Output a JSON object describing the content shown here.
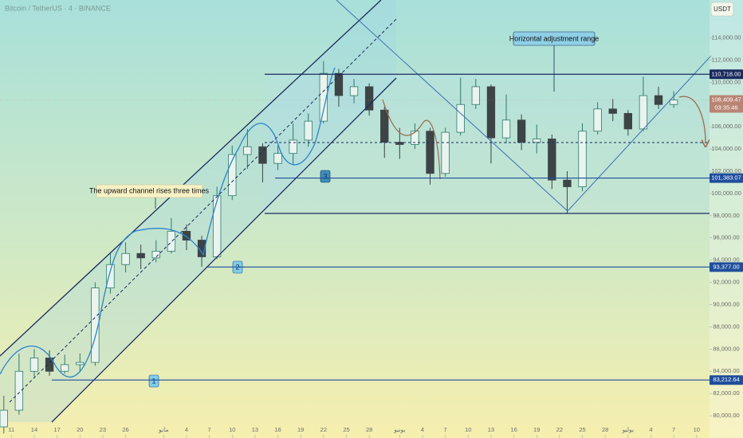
{
  "chart_data": {
    "type": "candlestick",
    "title": "Bitcoin / TetherUS · 4 · BINANCE",
    "currency": "USDT",
    "countdown": "03:35:46",
    "range_label": "Horizontal adjustment range",
    "channel_label": "The upward channel rises three times",
    "markers": [
      "1",
      "2",
      "3"
    ],
    "up_color": "#2e7a6c",
    "down_color": "#3d4446",
    "x": [
      0,
      2,
      4,
      6,
      8,
      10,
      12,
      14,
      16,
      18,
      20,
      22,
      24,
      26,
      28,
      30,
      32,
      34,
      36,
      38,
      40,
      42,
      44,
      46,
      48,
      50,
      52,
      54,
      56,
      58,
      60,
      62,
      64,
      66,
      68,
      70,
      72,
      74,
      76,
      78,
      80,
      82,
      84,
      86,
      88
    ],
    "open": [
      79000,
      80500,
      84000,
      85200,
      84000,
      84600,
      84800,
      91500,
      93600,
      94600,
      94200,
      94800,
      96600,
      95800,
      94300,
      99800,
      103500,
      104200,
      102700,
      103600,
      104800,
      106500,
      110800,
      108800,
      109600,
      107500,
      104600,
      104400,
      105600,
      101800,
      105500,
      108000,
      109600,
      105000,
      106600,
      104600,
      104900,
      101200,
      100600,
      105600,
      107600,
      107200,
      105800,
      108800,
      108000
    ],
    "high": [
      81800,
      85600,
      86000,
      85900,
      85500,
      85600,
      92000,
      94600,
      95600,
      95400,
      95800,
      97800,
      97200,
      96200,
      100600,
      104300,
      105800,
      104500,
      104300,
      106300,
      107200,
      111900,
      111200,
      110300,
      109900,
      107800,
      105900,
      106300,
      105900,
      105900,
      110400,
      110300,
      109800,
      108900,
      107100,
      106200,
      105300,
      102000,
      106300,
      108200,
      108500,
      107500,
      110500,
      109600,
      109200
    ],
    "low": [
      78400,
      80100,
      83500,
      83600,
      83800,
      84000,
      84500,
      91000,
      92900,
      93200,
      93800,
      94600,
      94900,
      93400,
      94100,
      99400,
      102200,
      101000,
      102100,
      102600,
      104200,
      106300,
      107800,
      108100,
      107000,
      103200,
      103100,
      104000,
      100800,
      101500,
      105200,
      107600,
      102700,
      104500,
      103900,
      103600,
      100400,
      98200,
      100200,
      105300,
      106500,
      105200,
      105600,
      107600,
      107700
    ],
    "close": [
      80500,
      84000,
      85200,
      84000,
      84600,
      84800,
      91500,
      93600,
      94600,
      94200,
      94800,
      96600,
      95800,
      94300,
      99800,
      103500,
      104200,
      102700,
      103600,
      104800,
      106500,
      110800,
      108800,
      109600,
      107500,
      104600,
      104400,
      105600,
      101800,
      105500,
      108000,
      109600,
      105000,
      106600,
      104600,
      104900,
      101200,
      100600,
      105600,
      107600,
      107200,
      105800,
      108800,
      108000,
      108400
    ],
    "xlim": [
      -0.5,
      92.7
    ],
    "ylim": [
      78000,
      117400
    ],
    "xticks": [
      {
        "value": 1,
        "label": "11"
      },
      {
        "value": 4,
        "label": "14"
      },
      {
        "value": 7,
        "label": "17"
      },
      {
        "value": 10,
        "label": "20"
      },
      {
        "value": 13,
        "label": "23"
      },
      {
        "value": 16,
        "label": "26"
      },
      {
        "value": 21,
        "label": "مايو"
      },
      {
        "value": 24,
        "label": "4"
      },
      {
        "value": 27,
        "label": "7"
      },
      {
        "value": 30,
        "label": "10"
      },
      {
        "value": 33,
        "label": "13"
      },
      {
        "value": 36,
        "label": "16"
      },
      {
        "value": 39,
        "label": "19"
      },
      {
        "value": 42,
        "label": "22"
      },
      {
        "value": 45,
        "label": "25"
      },
      {
        "value": 48,
        "label": "28"
      },
      {
        "value": 52,
        "label": "يونيو"
      },
      {
        "value": 55,
        "label": "4"
      },
      {
        "value": 58,
        "label": "7"
      },
      {
        "value": 61,
        "label": "10"
      },
      {
        "value": 64,
        "label": "13"
      },
      {
        "value": 67,
        "label": "16"
      },
      {
        "value": 70,
        "label": "19"
      },
      {
        "value": 73,
        "label": "22"
      },
      {
        "value": 76,
        "label": "25"
      },
      {
        "value": 79,
        "label": "28"
      },
      {
        "value": 82,
        "label": "يوليو"
      },
      {
        "value": 85,
        "label": "4"
      },
      {
        "value": 88,
        "label": "7"
      },
      {
        "value": 91,
        "label": "10"
      }
    ],
    "yticks": [
      {
        "value": 80000,
        "label": "80,000.00"
      },
      {
        "value": 82000,
        "label": "82,000.00"
      },
      {
        "value": 84000,
        "label": "84,000.00"
      },
      {
        "value": 86000,
        "label": "86,000.00"
      },
      {
        "value": 88000,
        "label": "88,000.00"
      },
      {
        "value": 90000,
        "label": "90,000.00"
      },
      {
        "value": 92000,
        "label": "92,000.00"
      },
      {
        "value": 94000,
        "label": "94,000.00"
      },
      {
        "value": 96000,
        "label": "96,000.00"
      },
      {
        "value": 98000,
        "label": "98,000.00"
      },
      {
        "value": 100000,
        "label": "100,000.00"
      },
      {
        "value": 102000,
        "label": "102,000.00"
      },
      {
        "value": 104000,
        "label": "104,000.00"
      },
      {
        "value": 106000,
        "label": "106,000.00"
      },
      {
        "value": 108000,
        "label": "108,000.00"
      },
      {
        "value": 110000,
        "label": "110,000.00"
      },
      {
        "value": 112000,
        "label": "112,000.00"
      },
      {
        "value": 114000,
        "label": "114,000.00"
      }
    ],
    "price_labels": [
      {
        "value": 110718,
        "label": "110,718.00",
        "color": "#1a2b5e"
      },
      {
        "value": 108409.47,
        "label": "108,409.47",
        "color": "#b88474"
      },
      {
        "value": 101383.07,
        "label": "101,383.07",
        "color": "#1f4e9c"
      },
      {
        "value": 93377,
        "label": "93,377.00",
        "color": "#1f4e9c"
      },
      {
        "value": 83212.64,
        "label": "83,212.64",
        "color": "#1f4e9c"
      }
    ]
  }
}
